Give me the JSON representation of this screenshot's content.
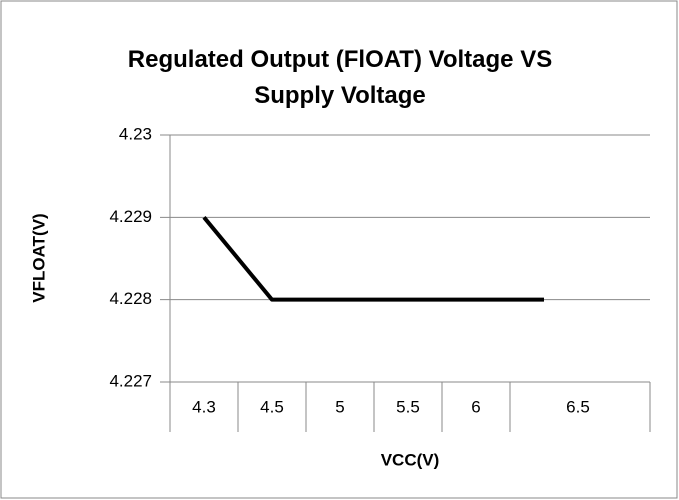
{
  "chart_data": {
    "type": "line",
    "title": "Regulated Output (FlOAT) Voltage VS Supply Voltage",
    "x_label": "VCC(V)",
    "y_label": "VFLOAT(V)",
    "categories": [
      "4.3",
      "4.5",
      "5",
      "5.5",
      "6",
      "6.5",
      null
    ],
    "series": [
      {
        "name": "VFLOAT",
        "color": "#000000",
        "values": [
          4.229,
          4.228,
          4.228,
          4.228,
          4.228,
          4.228,
          null
        ]
      }
    ],
    "ylim": [
      4.227,
      4.23
    ],
    "yticks": [
      4.227,
      4.228,
      4.229,
      4.23
    ],
    "grid": true
  }
}
